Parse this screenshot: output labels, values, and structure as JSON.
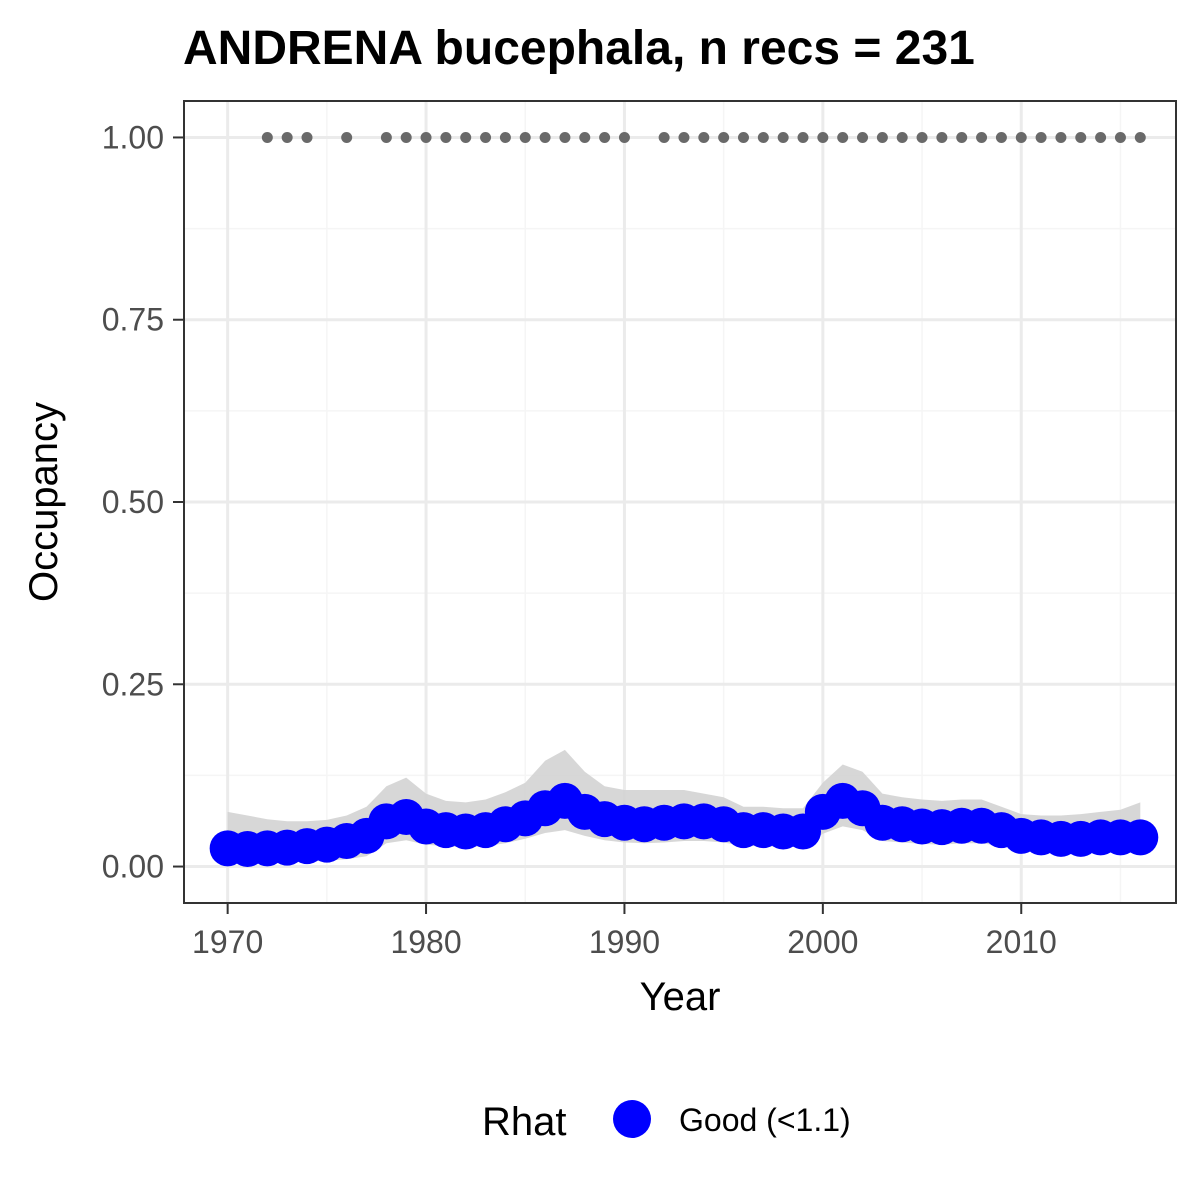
{
  "chart_data": {
    "type": "line",
    "title": "ANDRENA bucephala, n recs = 231",
    "xlabel": "Year",
    "ylabel": "Occupancy",
    "xlim": [
      1967.8,
      2017.8
    ],
    "ylim": [
      -0.05,
      1.05
    ],
    "x_ticks": [
      1970,
      1980,
      1990,
      2000,
      2010
    ],
    "x_tick_labels": [
      "1970",
      "1980",
      "1990",
      "2000",
      "2010"
    ],
    "y_ticks": [
      0,
      0.25,
      0.5,
      0.75,
      1
    ],
    "y_tick_labels": [
      "0.00",
      "0.25",
      "0.50",
      "0.75",
      "1.00"
    ],
    "grid": true,
    "x": [
      1970,
      1971,
      1972,
      1973,
      1974,
      1975,
      1976,
      1977,
      1978,
      1979,
      1980,
      1981,
      1982,
      1983,
      1984,
      1985,
      1986,
      1987,
      1988,
      1989,
      1990,
      1991,
      1992,
      1993,
      1994,
      1995,
      1996,
      1997,
      1998,
      1999,
      2000,
      2001,
      2002,
      2003,
      2004,
      2005,
      2006,
      2007,
      2008,
      2009,
      2010,
      2011,
      2012,
      2013,
      2014,
      2015,
      2016
    ],
    "series": [
      {
        "name": "Good (<1.1)",
        "values": [
          0.025,
          0.024,
          0.025,
          0.026,
          0.028,
          0.03,
          0.035,
          0.042,
          0.062,
          0.068,
          0.055,
          0.05,
          0.048,
          0.05,
          0.058,
          0.066,
          0.08,
          0.09,
          0.075,
          0.065,
          0.06,
          0.058,
          0.06,
          0.062,
          0.062,
          0.058,
          0.05,
          0.05,
          0.048,
          0.048,
          0.075,
          0.09,
          0.08,
          0.06,
          0.058,
          0.055,
          0.054,
          0.056,
          0.056,
          0.05,
          0.042,
          0.04,
          0.038,
          0.038,
          0.04,
          0.04,
          0.04
        ],
        "lower": [
          0.005,
          0.005,
          0.006,
          0.006,
          0.007,
          0.008,
          0.01,
          0.014,
          0.032,
          0.036,
          0.03,
          0.028,
          0.026,
          0.028,
          0.032,
          0.038,
          0.046,
          0.05,
          0.042,
          0.036,
          0.033,
          0.032,
          0.033,
          0.035,
          0.035,
          0.033,
          0.028,
          0.028,
          0.027,
          0.027,
          0.045,
          0.055,
          0.05,
          0.035,
          0.033,
          0.031,
          0.03,
          0.032,
          0.032,
          0.028,
          0.022,
          0.021,
          0.02,
          0.02,
          0.021,
          0.021,
          0.021
        ],
        "upper": [
          0.075,
          0.07,
          0.065,
          0.062,
          0.062,
          0.064,
          0.07,
          0.082,
          0.11,
          0.122,
          0.1,
          0.09,
          0.088,
          0.092,
          0.102,
          0.115,
          0.145,
          0.16,
          0.13,
          0.11,
          0.105,
          0.105,
          0.105,
          0.105,
          0.1,
          0.095,
          0.082,
          0.082,
          0.08,
          0.08,
          0.115,
          0.14,
          0.13,
          0.1,
          0.095,
          0.092,
          0.09,
          0.092,
          0.092,
          0.082,
          0.072,
          0.07,
          0.07,
          0.072,
          0.075,
          0.078,
          0.088
        ]
      }
    ],
    "record_years": [
      1972,
      1973,
      1974,
      1976,
      1978,
      1979,
      1980,
      1981,
      1982,
      1983,
      1984,
      1985,
      1986,
      1987,
      1988,
      1989,
      1990,
      1992,
      1993,
      1994,
      1995,
      1996,
      1997,
      1998,
      1999,
      2000,
      2001,
      2002,
      2003,
      2004,
      2005,
      2006,
      2007,
      2008,
      2009,
      2010,
      2011,
      2012,
      2013,
      2014,
      2015,
      2016
    ],
    "record_value": 1.0,
    "colors": {
      "series": "#0000ff",
      "ribbon": "#d3d3d3",
      "records": "#696969",
      "grid_major": "#ebebeb",
      "grid_minor": "#f5f5f5",
      "panel_border": "#333333"
    },
    "legend": {
      "title": "Rhat",
      "position": "bottom",
      "entries": [
        "Good (<1.1)"
      ]
    }
  }
}
